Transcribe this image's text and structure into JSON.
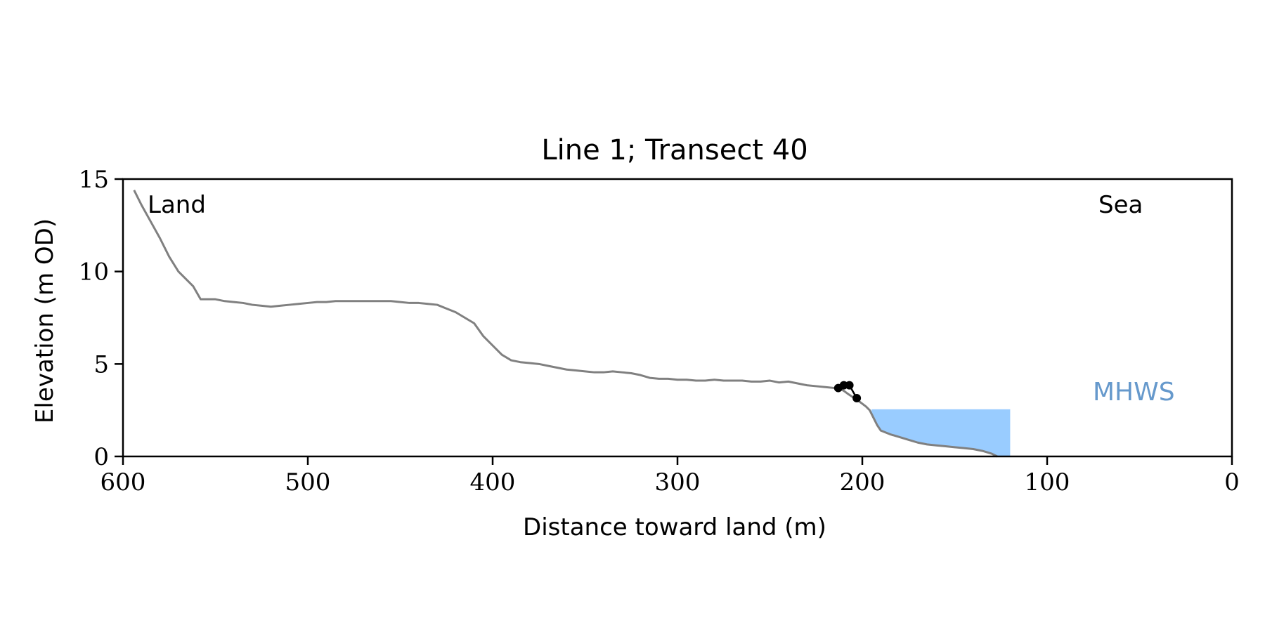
{
  "chart_data": {
    "type": "line",
    "title": "Line 1; Transect 40",
    "xlabel": "Distance toward land (m)",
    "ylabel": "Elevation (m OD)",
    "xlim": [
      600,
      0
    ],
    "ylim": [
      0,
      15
    ],
    "x_ticks": [
      600,
      500,
      400,
      300,
      200,
      100,
      0
    ],
    "y_ticks": [
      0,
      5,
      10,
      15
    ],
    "grid": false,
    "legend": "none",
    "annotations": {
      "land": "Land",
      "sea": "Sea",
      "mhws": "MHWS"
    },
    "colors": {
      "profile": "#808080",
      "water": "#99ccff",
      "mhws_text": "#6699cc",
      "points": "#000000"
    },
    "profile": {
      "x": [
        594,
        590,
        585,
        580,
        575,
        570,
        565,
        562,
        558,
        555,
        550,
        545,
        540,
        535,
        530,
        525,
        520,
        515,
        510,
        505,
        500,
        495,
        490,
        485,
        480,
        475,
        470,
        465,
        460,
        455,
        450,
        445,
        440,
        435,
        430,
        425,
        420,
        415,
        410,
        405,
        400,
        395,
        390,
        385,
        380,
        375,
        370,
        365,
        360,
        355,
        350,
        345,
        340,
        335,
        330,
        325,
        320,
        315,
        310,
        305,
        300,
        295,
        290,
        285,
        280,
        275,
        270,
        265,
        260,
        255,
        250,
        245,
        240,
        235,
        230,
        225,
        220,
        215,
        212,
        210,
        208,
        205,
        202,
        200,
        198,
        196,
        194,
        192,
        190,
        185,
        180,
        175,
        170,
        165,
        160,
        155,
        150,
        145,
        140,
        135,
        130,
        127
      ],
      "y": [
        14.4,
        13.6,
        12.7,
        11.8,
        10.8,
        10.0,
        9.5,
        9.2,
        8.5,
        8.5,
        8.5,
        8.4,
        8.35,
        8.3,
        8.2,
        8.15,
        8.1,
        8.15,
        8.2,
        8.25,
        8.3,
        8.35,
        8.35,
        8.4,
        8.4,
        8.4,
        8.4,
        8.4,
        8.4,
        8.4,
        8.35,
        8.3,
        8.3,
        8.25,
        8.2,
        8.0,
        7.8,
        7.5,
        7.2,
        6.5,
        6.0,
        5.5,
        5.2,
        5.1,
        5.05,
        5.0,
        4.9,
        4.8,
        4.7,
        4.65,
        4.6,
        4.55,
        4.55,
        4.6,
        4.55,
        4.5,
        4.4,
        4.25,
        4.2,
        4.2,
        4.15,
        4.15,
        4.1,
        4.1,
        4.15,
        4.1,
        4.1,
        4.1,
        4.05,
        4.05,
        4.1,
        4.0,
        4.05,
        3.95,
        3.85,
        3.8,
        3.75,
        3.7,
        3.65,
        3.55,
        3.4,
        3.2,
        3.0,
        2.85,
        2.7,
        2.5,
        2.1,
        1.7,
        1.4,
        1.2,
        1.05,
        0.9,
        0.75,
        0.65,
        0.6,
        0.55,
        0.5,
        0.45,
        0.4,
        0.3,
        0.15,
        0.0
      ]
    },
    "points": {
      "x": [
        213,
        210,
        207,
        203
      ],
      "y": [
        3.7,
        3.85,
        3.85,
        3.15
      ]
    },
    "water_band": {
      "x_from": 195,
      "x_to": 120,
      "y_top": 2.55
    }
  }
}
